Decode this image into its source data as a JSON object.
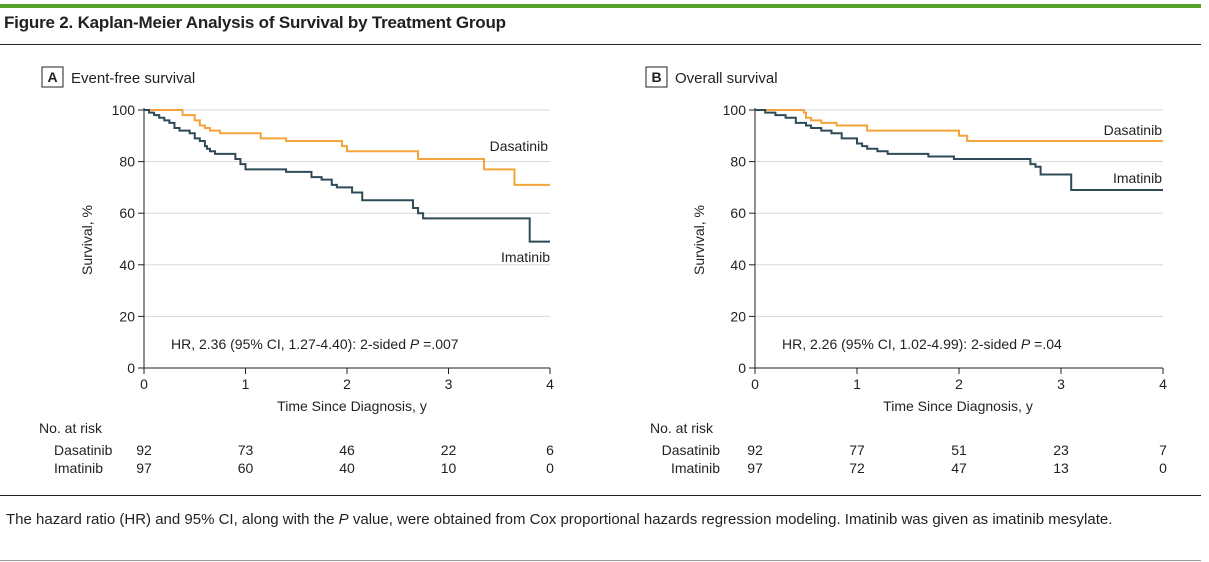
{
  "figure": {
    "title": "Figure 2. Kaplan-Meier Analysis of Survival by Treatment Group",
    "caption_parts": [
      "The hazard ratio (HR) and 95% CI, along with the ",
      "P",
      " value, were obtained from Cox proportional hazards regression modeling. Imatinib was given as imatinib mesylate."
    ]
  },
  "colors": {
    "dasatinib": "#f5a33b",
    "imatinib": "#2e4a57",
    "grid": "#d7d7d7",
    "accent": "#5aa02c"
  },
  "chart_data": [
    {
      "type": "line",
      "panel_letter": "A",
      "title": "Event-free survival",
      "xlabel": "Time Since Diagnosis, y",
      "ylabel": "Survival, %",
      "xlim": [
        0,
        4
      ],
      "ylim": [
        0,
        100
      ],
      "xticks": [
        0,
        1,
        2,
        3,
        4
      ],
      "yticks": [
        0,
        20,
        40,
        60,
        80,
        100
      ],
      "grid": true,
      "annotation": {
        "pre": "HR, 2.36 (95% CI, 1.27-4.40): 2-sided ",
        "p": "P",
        "post": " =.007"
      },
      "series": [
        {
          "name": "Dasatinib",
          "color": "#f5a33b",
          "x": [
            0,
            0.38,
            0.5,
            0.55,
            0.6,
            0.65,
            0.75,
            1.15,
            1.4,
            1.95,
            2.0,
            2.7,
            3.35,
            3.65,
            4.0
          ],
          "y": [
            100,
            98,
            96,
            94,
            93,
            92,
            91,
            89,
            88,
            86,
            84,
            81,
            77,
            71,
            71
          ]
        },
        {
          "name": "Imatinib",
          "color": "#2e4a57",
          "x": [
            0,
            0.05,
            0.1,
            0.15,
            0.2,
            0.25,
            0.3,
            0.35,
            0.45,
            0.5,
            0.55,
            0.6,
            0.62,
            0.65,
            0.7,
            0.9,
            0.95,
            1.0,
            1.4,
            1.65,
            1.75,
            1.85,
            1.9,
            2.05,
            2.15,
            2.65,
            2.7,
            2.75,
            3.8,
            4.0
          ],
          "y": [
            100,
            99,
            98,
            97,
            96,
            95,
            93,
            92,
            91,
            89,
            88,
            86,
            85,
            84,
            83,
            81,
            79,
            77,
            76,
            74,
            73,
            71,
            70,
            68,
            65,
            62,
            60,
            58,
            49,
            49
          ]
        }
      ],
      "at_risk": {
        "heading": "No. at risk",
        "rows": [
          {
            "name": "Dasatinib",
            "values": [
              "92",
              "73",
              "46",
              "22",
              "6"
            ]
          },
          {
            "name": "Imatinib",
            "values": [
              "97",
              "60",
              "40",
              "10",
              "0"
            ]
          }
        ]
      }
    },
    {
      "type": "line",
      "panel_letter": "B",
      "title": "Overall survival",
      "xlabel": "Time Since Diagnosis, y",
      "ylabel": "Survival, %",
      "xlim": [
        0,
        4
      ],
      "ylim": [
        0,
        100
      ],
      "xticks": [
        0,
        1,
        2,
        3,
        4
      ],
      "yticks": [
        0,
        20,
        40,
        60,
        80,
        100
      ],
      "grid": true,
      "annotation": {
        "pre": "HR, 2.26 (95% CI, 1.02-4.99): 2-sided ",
        "p": "P",
        "post": " =.04"
      },
      "series": [
        {
          "name": "Dasatinib",
          "color": "#f5a33b",
          "x": [
            0,
            0.1,
            0.48,
            0.5,
            0.55,
            0.65,
            0.8,
            1.1,
            1.35,
            2.0,
            2.08,
            2.1,
            4.0
          ],
          "y": [
            100,
            100,
            99,
            97,
            96,
            95,
            94,
            92,
            92,
            90,
            88,
            88,
            88
          ]
        },
        {
          "name": "Imatinib",
          "color": "#2e4a57",
          "x": [
            0,
            0.1,
            0.2,
            0.3,
            0.4,
            0.5,
            0.55,
            0.65,
            0.75,
            0.85,
            1.0,
            1.05,
            1.1,
            1.2,
            1.3,
            1.7,
            1.95,
            2.7,
            2.75,
            2.8,
            3.1,
            4.0
          ],
          "y": [
            100,
            99,
            98,
            97,
            95,
            94,
            93,
            92,
            91,
            89,
            87,
            86,
            85,
            84,
            83,
            82,
            81,
            79,
            78,
            75,
            69,
            69
          ]
        }
      ],
      "at_risk": {
        "heading": "No. at risk",
        "rows": [
          {
            "name": "Dasatinib",
            "values": [
              "92",
              "77",
              "51",
              "23",
              "7"
            ]
          },
          {
            "name": "Imatinib",
            "values": [
              "97",
              "72",
              "47",
              "13",
              "0"
            ]
          }
        ]
      }
    }
  ]
}
